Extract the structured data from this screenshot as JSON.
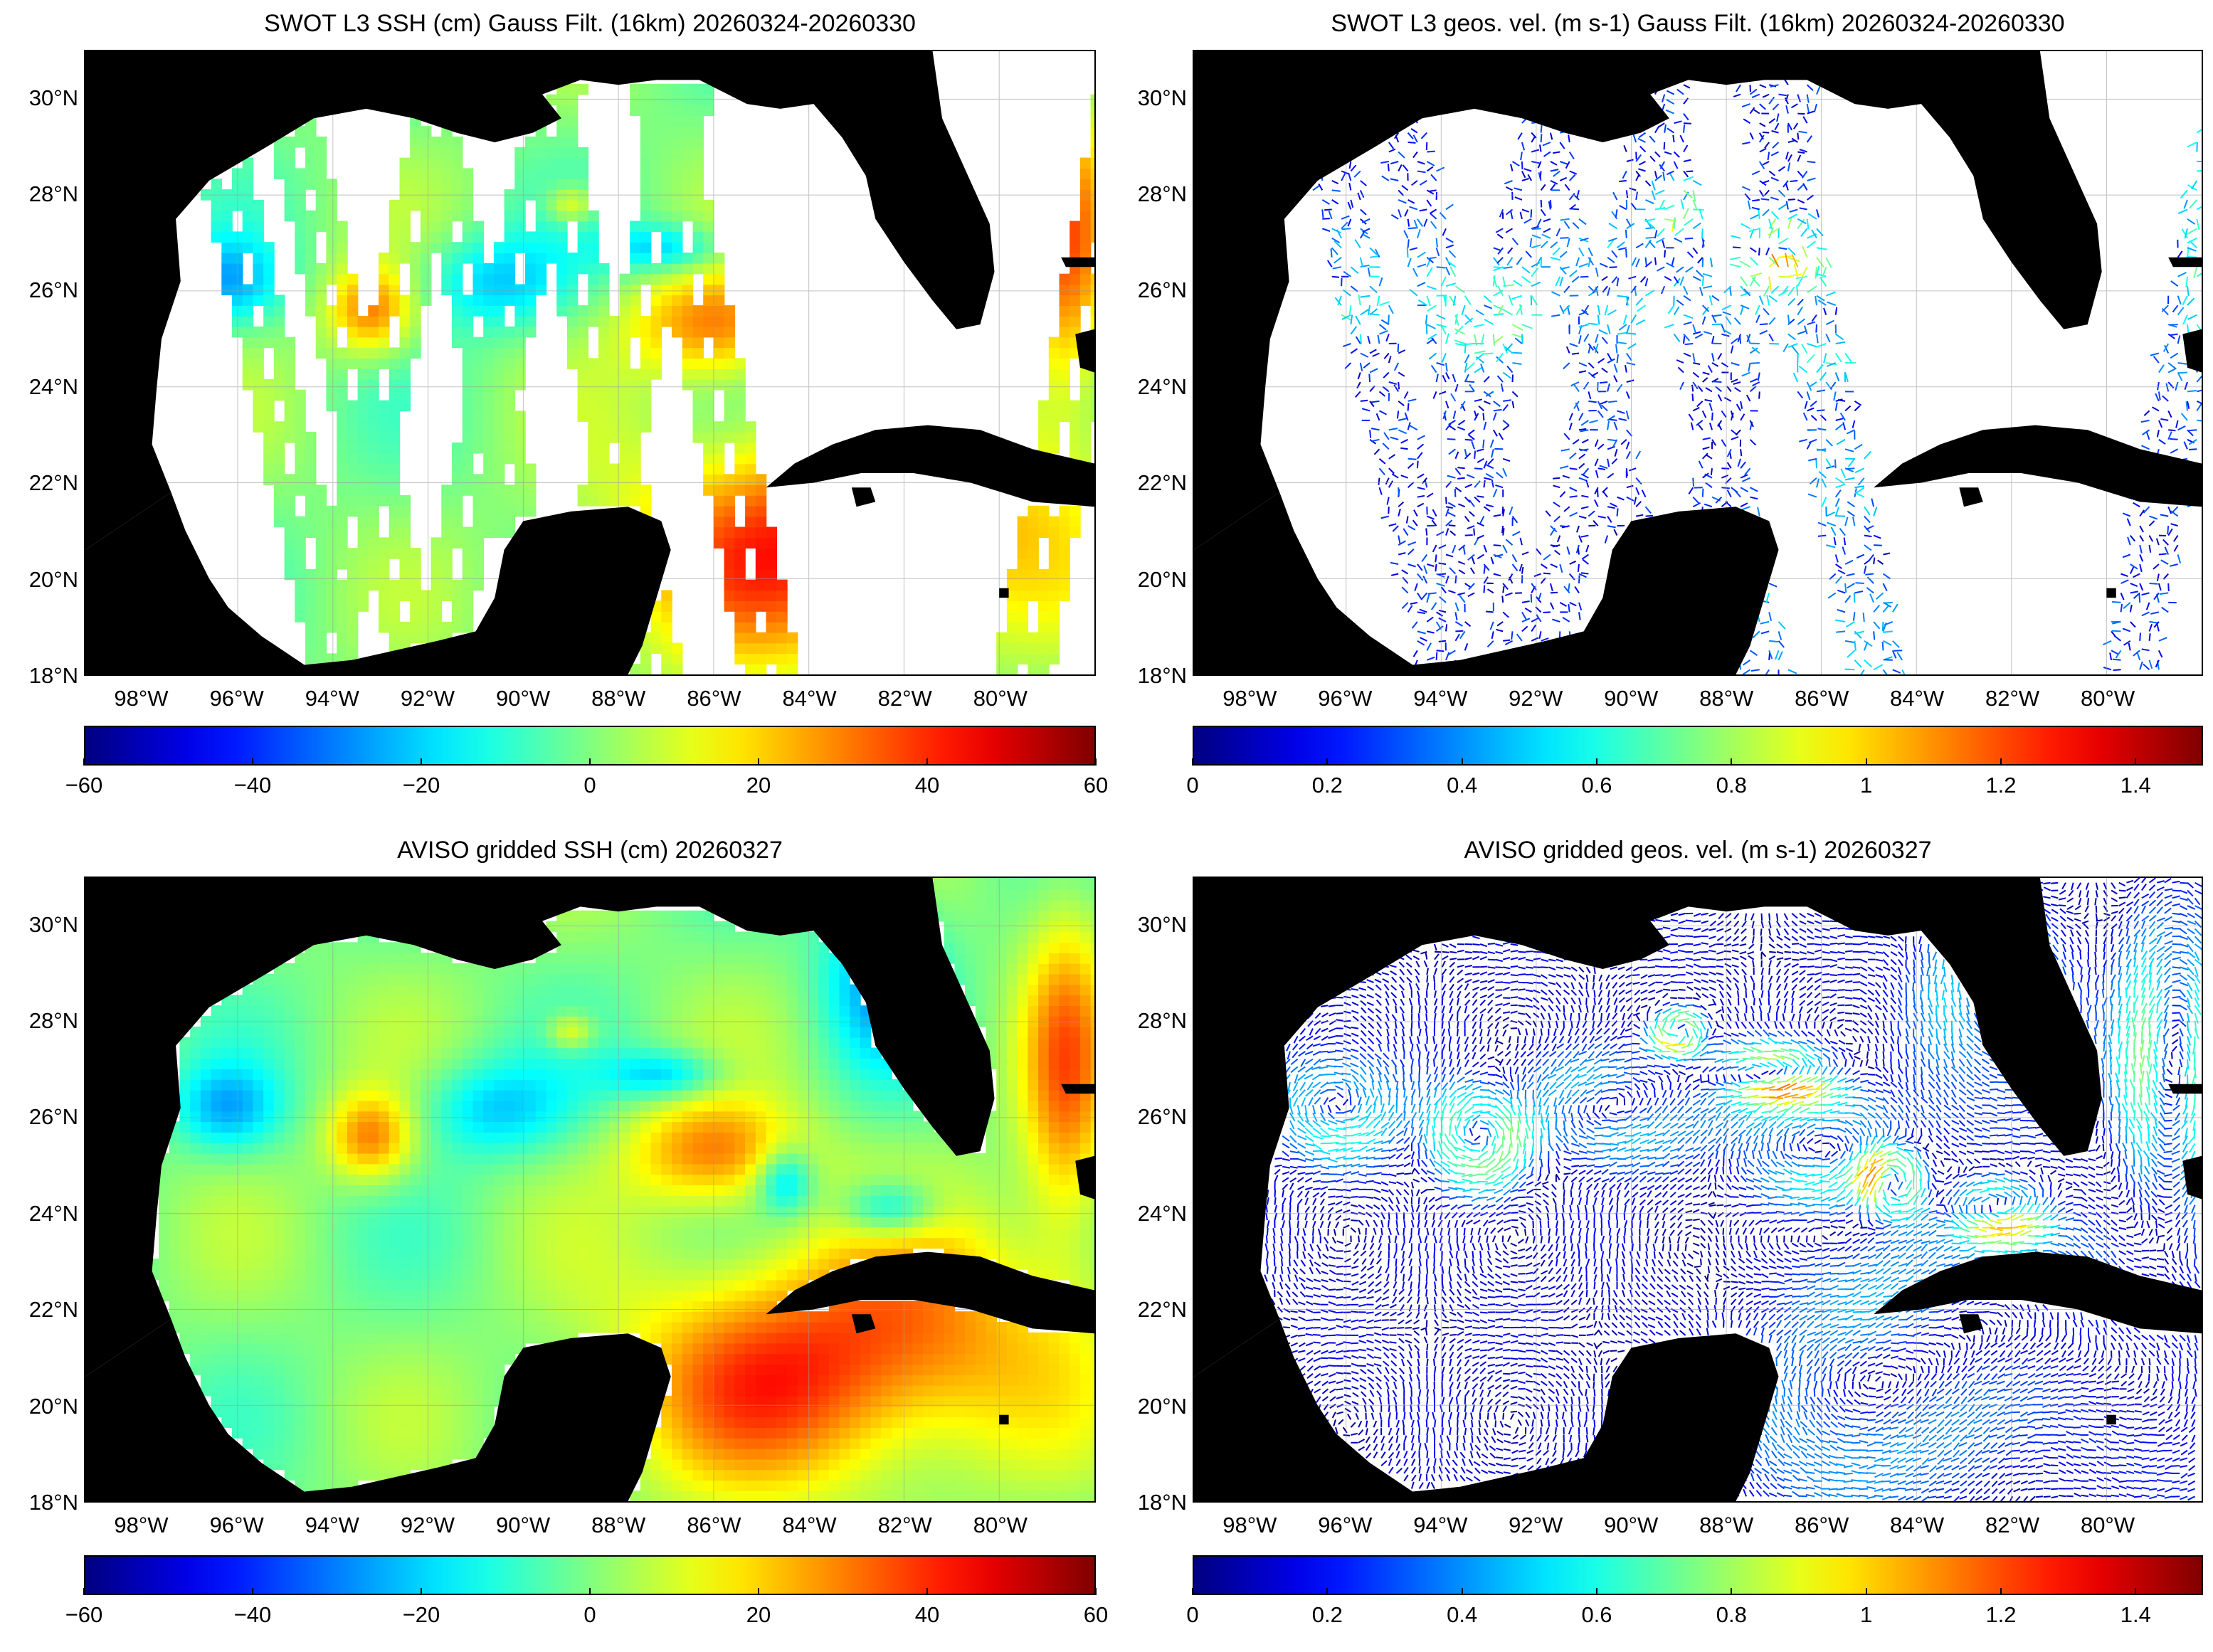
{
  "panels": [
    {
      "id": "swot-ssh",
      "title": "SWOT L3 SSH (cm) Gauss Filt. (16km) 20260324-20260330",
      "kind": "ssh-swath",
      "colorbar": {
        "ticks": [
          "−60",
          "−40",
          "−20",
          "0",
          "20",
          "40",
          "60"
        ],
        "min": -60,
        "max": 60
      }
    },
    {
      "id": "swot-vel",
      "title": "SWOT L3 geos. vel. (m s-1) Gauss Filt. (16km) 20260324-20260330",
      "kind": "vel-swath",
      "colorbar": {
        "ticks": [
          "0",
          "0.2",
          "0.4",
          "0.6",
          "0.8",
          "1",
          "1.2",
          "1.4"
        ],
        "min": 0,
        "max": 1.5
      }
    },
    {
      "id": "aviso-ssh",
      "title": "AVISO gridded SSH (cm) 20260327",
      "kind": "ssh-grid",
      "colorbar": {
        "ticks": [
          "−60",
          "−40",
          "−20",
          "0",
          "20",
          "40",
          "60"
        ],
        "min": -60,
        "max": 60
      }
    },
    {
      "id": "aviso-vel",
      "title": "AVISO gridded geos. vel. (m s-1)  20260327",
      "kind": "vel-grid",
      "colorbar": {
        "ticks": [
          "0",
          "0.2",
          "0.4",
          "0.6",
          "0.8",
          "1",
          "1.2",
          "1.4"
        ],
        "min": 0,
        "max": 1.5
      }
    }
  ],
  "axes": {
    "lat_labels": [
      "30°N",
      "28°N",
      "26°N",
      "24°N",
      "22°N",
      "20°N",
      "18°N"
    ],
    "lat_values": [
      30,
      28,
      26,
      24,
      22,
      20,
      18
    ],
    "lon_labels": [
      "98°W",
      "96°W",
      "94°W",
      "92°W",
      "90°W",
      "88°W",
      "86°W",
      "84°W",
      "82°W",
      "80°W"
    ],
    "lon_values": [
      -98,
      -96,
      -94,
      -92,
      -90,
      -88,
      -86,
      -84,
      -82,
      -80
    ],
    "lon_range": [
      -99.2,
      -78.0
    ],
    "lat_range": [
      18.0,
      31.0
    ]
  },
  "colormap": "jet",
  "land_color": "#000000",
  "missing_color": "#ffffff"
}
